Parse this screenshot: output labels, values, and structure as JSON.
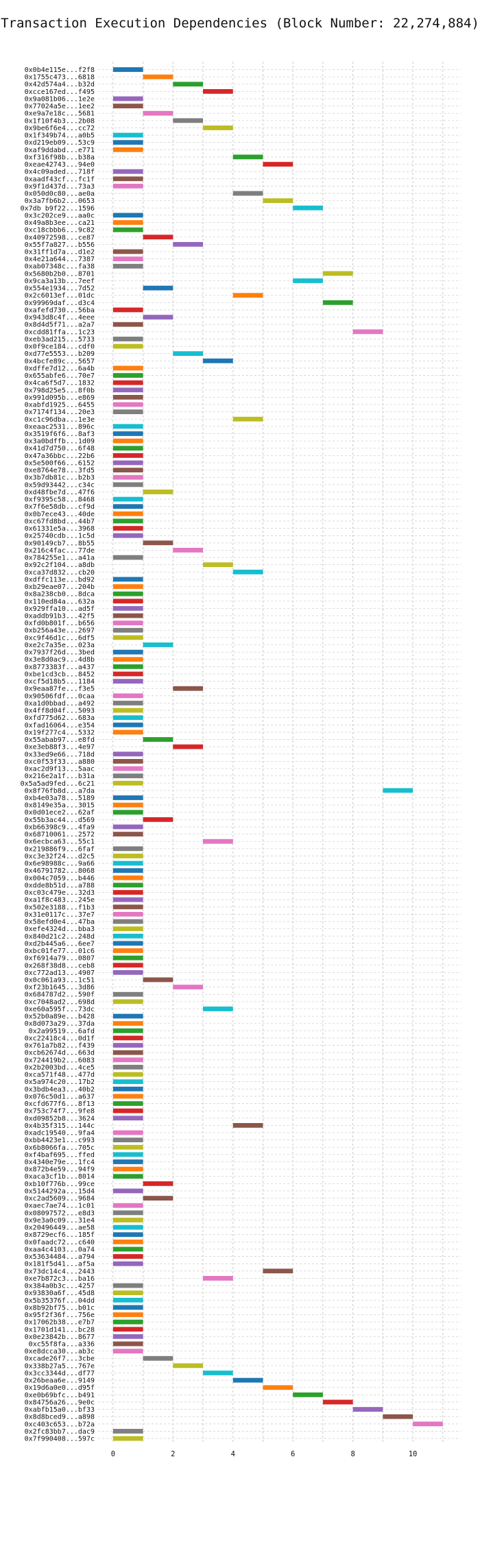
{
  "chart_data": {
    "type": "bar",
    "orientation": "horizontal-gantt",
    "title": "Transaction Execution Dependencies (Block Number: 22,274,884)",
    "xlabel": "",
    "ylabel": "",
    "xlim": [
      -0.5,
      11.6
    ],
    "xticks": [
      0,
      2,
      4,
      6,
      8,
      10
    ],
    "grid": true,
    "palette": [
      "#1f77b4",
      "#ff7f0e",
      "#2ca02c",
      "#d62728",
      "#9467bd",
      "#8c564b",
      "#e377c2",
      "#7f7f7f",
      "#bcbd22",
      "#17becf"
    ],
    "transactions": [
      {
        "label": "0x0b4e115e...f2f8",
        "start": 0
      },
      {
        "label": "0x1755c473...6818",
        "start": 1
      },
      {
        "label": "0x42d574a4...b32d",
        "start": 2
      },
      {
        "label": "0xcce167ed...f495",
        "start": 3
      },
      {
        "label": "0x9a081b06...1e2e",
        "start": 0
      },
      {
        "label": "0x77024a5e...1ee2",
        "start": 0
      },
      {
        "label": "0xe9a7e18c...5681",
        "start": 1
      },
      {
        "label": "0x1f10f4b3...2b08",
        "start": 2
      },
      {
        "label": "0x9be6f6e4...cc72",
        "start": 3
      },
      {
        "label": "0x1f349b74...a0b5",
        "start": 0
      },
      {
        "label": "0xd219eb09...53c9",
        "start": 0
      },
      {
        "label": "0xaf9ddabd...e771",
        "start": 0
      },
      {
        "label": "0xf316f98b...b38a",
        "start": 4
      },
      {
        "label": "0xeae42743...94e0",
        "start": 5
      },
      {
        "label": "0x4c09aded...718f",
        "start": 0
      },
      {
        "label": "0xaadf43cf...fc1f",
        "start": 0
      },
      {
        "label": "0x9f1d437d...73a3",
        "start": 0
      },
      {
        "label": "0x050d0c80...ae0a",
        "start": 4
      },
      {
        "label": "0x3a7fb6b2...0653",
        "start": 5
      },
      {
        "label": "0x7db b9f22...1596",
        "start": 6
      },
      {
        "label": "0x3c202ce9...aa0c",
        "start": 0
      },
      {
        "label": "0x49a8b3ee...ca21",
        "start": 0
      },
      {
        "label": "0xc18cbbb6...9c82",
        "start": 0
      },
      {
        "label": "0x40972598...ce87",
        "start": 1
      },
      {
        "label": "0x55f7a827...b556",
        "start": 2
      },
      {
        "label": "0x31ff1d7a...d1e2",
        "start": 0
      },
      {
        "label": "0x4e21a644...7387",
        "start": 0
      },
      {
        "label": "0xab07348c...fa38",
        "start": 0
      },
      {
        "label": "0x5680b2b0...8701",
        "start": 7
      },
      {
        "label": "0x9ca3a13b...7eef",
        "start": 6
      },
      {
        "label": "0x554e1934...7d52",
        "start": 1
      },
      {
        "label": "0x2c6013ef...01dc",
        "start": 4
      },
      {
        "label": "0x99969daf...d3c4",
        "start": 7
      },
      {
        "label": "0xafefd730...56ba",
        "start": 0
      },
      {
        "label": "0x943d8c4f...4eee",
        "start": 1
      },
      {
        "label": "0x8d4d5f71...a2a7",
        "start": 0
      },
      {
        "label": "0xcdd81ffa...1c23",
        "start": 8
      },
      {
        "label": "0xeb3ad215...5733",
        "start": 0
      },
      {
        "label": "0x0f9ce184...cdf0",
        "start": 0
      },
      {
        "label": "0xd77e5553...b209",
        "start": 2
      },
      {
        "label": "0x4bcfe89c...5657",
        "start": 3
      },
      {
        "label": "0xdffe7d12...6a4b",
        "start": 0
      },
      {
        "label": "0x655abfe6...70e7",
        "start": 0
      },
      {
        "label": "0x4ca6f5d7...1832",
        "start": 0
      },
      {
        "label": "0x798d25e5...8f0b",
        "start": 0
      },
      {
        "label": "0x991d095b...e869",
        "start": 0
      },
      {
        "label": "0xabfd1925...6455",
        "start": 0
      },
      {
        "label": "0x7174f134...20e3",
        "start": 0
      },
      {
        "label": "0xc1c96dba...1e3e",
        "start": 4
      },
      {
        "label": "0xeaac2531...896c",
        "start": 0
      },
      {
        "label": "0x3519f6f6...8af3",
        "start": 0
      },
      {
        "label": "0x3a0bdffb...1d09",
        "start": 0
      },
      {
        "label": "0x41d7d750...6f48",
        "start": 0
      },
      {
        "label": "0x47a36bbc...22b6",
        "start": 0
      },
      {
        "label": "0x5e500f66...6152",
        "start": 0
      },
      {
        "label": "0xe8764e78...3fd5",
        "start": 0
      },
      {
        "label": "0x3b7db81c...b2b3",
        "start": 0
      },
      {
        "label": "0x59d93442...c34c",
        "start": 0
      },
      {
        "label": "0xd48fbe7d...47f6",
        "start": 1
      },
      {
        "label": "0xf9395c58...8468",
        "start": 0
      },
      {
        "label": "0x7f6e58db...cf9d",
        "start": 0
      },
      {
        "label": "0x0b7ece43...40de",
        "start": 0
      },
      {
        "label": "0xc67fd8bd...44b7",
        "start": 0
      },
      {
        "label": "0x61331e5a...3968",
        "start": 0
      },
      {
        "label": "0x25740cdb...1c5d",
        "start": 0
      },
      {
        "label": "0x90149cb7...8b55",
        "start": 1
      },
      {
        "label": "0x216c4fac...77de",
        "start": 2
      },
      {
        "label": "0x784255e1...a41a",
        "start": 0
      },
      {
        "label": "0x92c2f104...a8db",
        "start": 3
      },
      {
        "label": "0xca37d832...cb20",
        "start": 4
      },
      {
        "label": "0xdffc113e...bd92",
        "start": 0
      },
      {
        "label": "0xb29eae07...204b",
        "start": 0
      },
      {
        "label": "0x8a238cb0...8dca",
        "start": 0
      },
      {
        "label": "0x110ed84a...632a",
        "start": 0
      },
      {
        "label": "0x929ffa10...ad5f",
        "start": 0
      },
      {
        "label": "0xaddb91b3...42f5",
        "start": 0
      },
      {
        "label": "0xfd0b801f...b656",
        "start": 0
      },
      {
        "label": "0xb256a43e...2697",
        "start": 0
      },
      {
        "label": "0xc9f46d1c...6df5",
        "start": 0
      },
      {
        "label": "0xe2c7a35e...023a",
        "start": 1
      },
      {
        "label": "0x7937f26d...3bed",
        "start": 0
      },
      {
        "label": "0x3e8d0ac9...4d8b",
        "start": 0
      },
      {
        "label": "0x8773383f...a437",
        "start": 0
      },
      {
        "label": "0xbe1cd3cb...8452",
        "start": 0
      },
      {
        "label": "0xcf5d18b5...1184",
        "start": 0
      },
      {
        "label": "0x9eaa87fe...f3e5",
        "start": 2
      },
      {
        "label": "0x90506fdf...0caa",
        "start": 0
      },
      {
        "label": "0xa1d0bbad...a492",
        "start": 0
      },
      {
        "label": "0x4ff8d04f...5093",
        "start": 0
      },
      {
        "label": "0xfd775d62...683a",
        "start": 0
      },
      {
        "label": "0xfad16064...e354",
        "start": 0
      },
      {
        "label": "0x19f277c4...5332",
        "start": 0
      },
      {
        "label": "0x55abab97...e8fd",
        "start": 1
      },
      {
        "label": "0xe3eb88f3...4e97",
        "start": 2
      },
      {
        "label": "0x33ed9e66...718d",
        "start": 0
      },
      {
        "label": "0xc0f53f33...a880",
        "start": 0
      },
      {
        "label": "0xac2d9f13...5aac",
        "start": 0
      },
      {
        "label": "0x216e2a1f...b31a",
        "start": 0
      },
      {
        "label": "0x5a5ad9fed...6c21",
        "start": 0
      },
      {
        "label": "0x8f76fb8d...a7da",
        "start": 9
      },
      {
        "label": "0xb4e03a78...5189",
        "start": 0
      },
      {
        "label": "0x8149e35a...3015",
        "start": 0
      },
      {
        "label": "0x0d01ece2...62af",
        "start": 0
      },
      {
        "label": "0x55b3ac44...d569",
        "start": 1
      },
      {
        "label": "0xb66398c9...4fa9",
        "start": 0
      },
      {
        "label": "0x68710061...2572",
        "start": 0
      },
      {
        "label": "0x6ecbca63...55c1",
        "start": 3
      },
      {
        "label": "0x219886f9...6faf",
        "start": 0
      },
      {
        "label": "0xc3e32f24...d2c5",
        "start": 0
      },
      {
        "label": "0x6e98988c...9a66",
        "start": 0
      },
      {
        "label": "0x46791782...8068",
        "start": 0
      },
      {
        "label": "0x004c7059...b446",
        "start": 0
      },
      {
        "label": "0xdde8b51d...a788",
        "start": 0
      },
      {
        "label": "0xc03c479e...32d3",
        "start": 0
      },
      {
        "label": "0xa1f8c483...245e",
        "start": 0
      },
      {
        "label": "0x502e3188...f1b3",
        "start": 0
      },
      {
        "label": "0x31e0117c...37e7",
        "start": 0
      },
      {
        "label": "0x58efd0e4...47ba",
        "start": 0
      },
      {
        "label": "0xefe4324d...bba3",
        "start": 0
      },
      {
        "label": "0x840d21c2...248d",
        "start": 0
      },
      {
        "label": "0xd2b445a6...6ee7",
        "start": 0
      },
      {
        "label": "0xbc01fe77...01c6",
        "start": 0
      },
      {
        "label": "0xf6914a79...0807",
        "start": 0
      },
      {
        "label": "0x268f38d8...ceb8",
        "start": 0
      },
      {
        "label": "0xc772ad13...4907",
        "start": 0
      },
      {
        "label": "0x0c061a93...1c51",
        "start": 1
      },
      {
        "label": "0xf23b1645...3d86",
        "start": 2
      },
      {
        "label": "0x684787d2...590f",
        "start": 0
      },
      {
        "label": "0xc7048ad2...698d",
        "start": 0
      },
      {
        "label": "0xe60a595f...73dc",
        "start": 3
      },
      {
        "label": "0x52b0a89e...b428",
        "start": 0
      },
      {
        "label": "0x8d073a29...37da",
        "start": 0
      },
      {
        "label": "0x2a99519...6afd",
        "start": 0
      },
      {
        "label": "0xc22418c4...0d1f",
        "start": 0
      },
      {
        "label": "0x761a7b82...f439",
        "start": 0
      },
      {
        "label": "0xcb62674d...663d",
        "start": 0
      },
      {
        "label": "0x724419b2...6083",
        "start": 0
      },
      {
        "label": "0x2b2003bd...4ce5",
        "start": 0
      },
      {
        "label": "0xca571f48...477d",
        "start": 0
      },
      {
        "label": "0x5a974c20...17b2",
        "start": 0
      },
      {
        "label": "0x3bdb4ea3...40b2",
        "start": 0
      },
      {
        "label": "0x076c50d1...a637",
        "start": 0
      },
      {
        "label": "0xcfd677f6...8f13",
        "start": 0
      },
      {
        "label": "0x753c74f7...9fe8",
        "start": 0
      },
      {
        "label": "0xd09852b8...3624",
        "start": 0
      },
      {
        "label": "0x4b35f315...144c",
        "start": 4
      },
      {
        "label": "0xadc19540...9fa4",
        "start": 0
      },
      {
        "label": "0xbb4423e1...c993",
        "start": 0
      },
      {
        "label": "0x6b8066fa...705c",
        "start": 0
      },
      {
        "label": "0xf4baf695...ffed",
        "start": 0
      },
      {
        "label": "0x4340e79e...1fc4",
        "start": 0
      },
      {
        "label": "0x872b4e59...94f9",
        "start": 0
      },
      {
        "label": "0xaca3cf1b...8014",
        "start": 0
      },
      {
        "label": "0xb10f776b...99ce",
        "start": 1
      },
      {
        "label": "0x5144292a...15d4",
        "start": 0
      },
      {
        "label": "0xc2ad5609...9684",
        "start": 1
      },
      {
        "label": "0xaec7ae74...1c01",
        "start": 0
      },
      {
        "label": "0x08097572...e8d3",
        "start": 0
      },
      {
        "label": "0x9e3a0c09...31e4",
        "start": 0
      },
      {
        "label": "0x20496449...ae58",
        "start": 0
      },
      {
        "label": "0x8729ecf6...185f",
        "start": 0
      },
      {
        "label": "0x0faadc72...c640",
        "start": 0
      },
      {
        "label": "0xaa4c4103...0a74",
        "start": 0
      },
      {
        "label": "0x53634484...a794",
        "start": 0
      },
      {
        "label": "0x181f5d41...af5a",
        "start": 0
      },
      {
        "label": "0x73dc14c4...2443",
        "start": 5
      },
      {
        "label": "0xe7b872c3...ba16",
        "start": 3
      },
      {
        "label": "0x384a0b3c...4257",
        "start": 0
      },
      {
        "label": "0x93830a6f...45d8",
        "start": 0
      },
      {
        "label": "0x5b35376f...04dd",
        "start": 0
      },
      {
        "label": "0x8b92bf75...b01c",
        "start": 0
      },
      {
        "label": "0x95f2f36f...756e",
        "start": 0
      },
      {
        "label": "0x17062b38...e7b7",
        "start": 0
      },
      {
        "label": "0x1701d141...bc28",
        "start": 0
      },
      {
        "label": "0x0e23842b...8677",
        "start": 0
      },
      {
        "label": "0xc55f8fa...a336",
        "start": 0
      },
      {
        "label": "0xe8dcca30...ab3c",
        "start": 0
      },
      {
        "label": "0xcade26f7...3cbe",
        "start": 1
      },
      {
        "label": "0x338b27a5...767e",
        "start": 2
      },
      {
        "label": "0x3cc3344d...df77",
        "start": 3
      },
      {
        "label": "0x26beaa6e...9149",
        "start": 4
      },
      {
        "label": "0x19d6a0e0...d95f",
        "start": 5
      },
      {
        "label": "0xe0b69bfc...b491",
        "start": 6
      },
      {
        "label": "0x84756a26...9e0c",
        "start": 7
      },
      {
        "label": "0xabfb15a0...bf33",
        "start": 8
      },
      {
        "label": "0x8d8bced9...a898",
        "start": 9
      },
      {
        "label": "0xc403c653...b72a",
        "start": 10
      },
      {
        "label": "0x2fc83bb7...dac9",
        "start": 0
      },
      {
        "label": "0x7f990408...597c",
        "start": 0
      }
    ]
  }
}
